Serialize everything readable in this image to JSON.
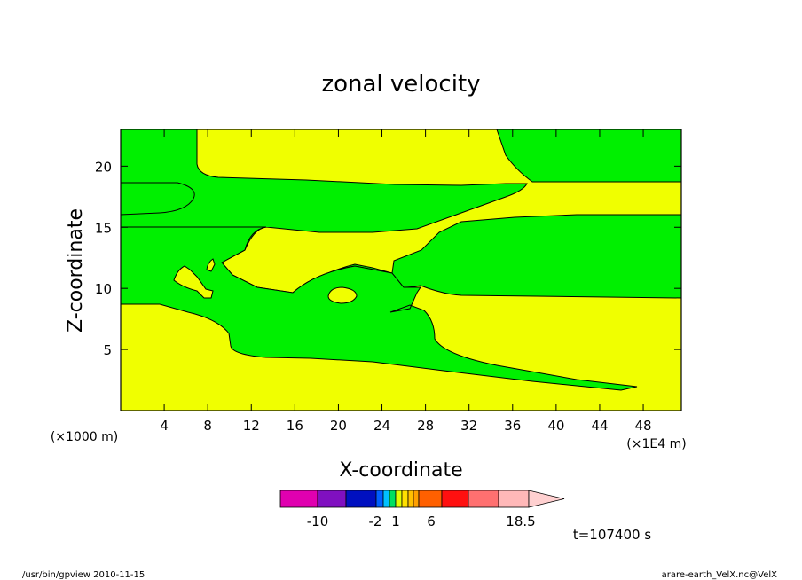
{
  "chart_data": {
    "type": "contour",
    "title": "zonal velocity",
    "xlabel": "X-coordinate",
    "ylabel": "Z-coordinate",
    "x_unit_left": "(×1000 m)",
    "x_unit_right": "(×1E4 m)",
    "xlim": [
      0,
      51.5
    ],
    "ylim": [
      0,
      23
    ],
    "x_ticks": [
      4,
      8,
      12,
      16,
      20,
      24,
      28,
      32,
      36,
      40,
      44,
      48
    ],
    "y_ticks": [
      5,
      10,
      15,
      20
    ],
    "colors": {
      "positive": "#f0ff00",
      "negative": "#00f000",
      "contour": "#000000"
    },
    "colorbar": {
      "colors": [
        "#e000b0",
        "#8010c0",
        "#0010c0",
        "#0060ff",
        "#00c0ff",
        "#00e060",
        "#e0ff00",
        "#ffe000",
        "#ffc000",
        "#ffa000",
        "#ff6000",
        "#ff1010",
        "#ff7070",
        "#ffb8b8",
        "#ffd0d0"
      ],
      "tick_labels": [
        "-10",
        "-2",
        "1",
        "6",
        "18.5"
      ]
    },
    "time_label": "t=107400 s"
  },
  "footer": {
    "left": "/usr/bin/gpview   2010-11-15",
    "right": "arare-earth_VelX.nc@VelX"
  }
}
